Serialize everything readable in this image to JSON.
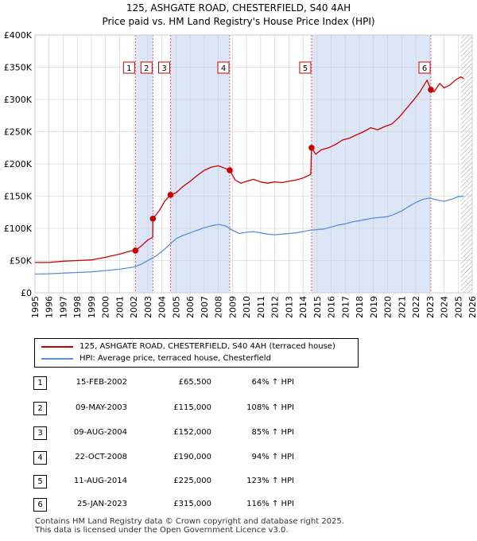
{
  "chart_data": {
    "type": "line",
    "title": "125, ASHGATE ROAD, CHESTERFIELD, S40 4AH",
    "subtitle": "Price paid vs. HM Land Registry's House Price Index (HPI)",
    "xlim": [
      1995,
      2026
    ],
    "ylim": [
      0,
      400000
    ],
    "x_ticks": [
      1995,
      1996,
      1997,
      1998,
      1999,
      2000,
      2001,
      2002,
      2003,
      2004,
      2005,
      2006,
      2007,
      2008,
      2009,
      2010,
      2011,
      2012,
      2013,
      2014,
      2015,
      2016,
      2017,
      2018,
      2019,
      2020,
      2021,
      2022,
      2023,
      2024,
      2025,
      2026
    ],
    "y_ticks": [
      0,
      50000,
      100000,
      150000,
      200000,
      250000,
      300000,
      350000,
      400000
    ],
    "y_tick_labels": [
      "£0",
      "£50K",
      "£100K",
      "£150K",
      "£200K",
      "£250K",
      "£300K",
      "£350K",
      "£400K"
    ],
    "colors": {
      "property": "#cc0000",
      "hpi": "#5b8fd6",
      "shade": "#dde6f7",
      "vline": "#dd6666",
      "grid": "#cccccc"
    },
    "series": [
      {
        "name": "125, ASHGATE ROAD, CHESTERFIELD, S40 4AH (terraced house)",
        "color": "#cc0000",
        "points": [
          [
            1995.0,
            47000
          ],
          [
            1996.0,
            47000
          ],
          [
            1997.0,
            49000
          ],
          [
            1998.0,
            50000
          ],
          [
            1999.0,
            51000
          ],
          [
            2000.0,
            55000
          ],
          [
            2001.0,
            60000
          ],
          [
            2001.8,
            65000
          ],
          [
            2002.12,
            65500
          ],
          [
            2002.5,
            72000
          ],
          [
            2003.0,
            82000
          ],
          [
            2003.35,
            86000
          ],
          [
            2003.36,
            115000
          ],
          [
            2003.8,
            127000
          ],
          [
            2004.2,
            142000
          ],
          [
            2004.6,
            152000
          ],
          [
            2004.61,
            152000
          ],
          [
            2005.0,
            155000
          ],
          [
            2005.5,
            165000
          ],
          [
            2006.0,
            173000
          ],
          [
            2006.5,
            182000
          ],
          [
            2007.0,
            190000
          ],
          [
            2007.5,
            195000
          ],
          [
            2008.0,
            197000
          ],
          [
            2008.5,
            193000
          ],
          [
            2008.81,
            190000
          ],
          [
            2009.2,
            175000
          ],
          [
            2009.6,
            170000
          ],
          [
            2010.0,
            173000
          ],
          [
            2010.5,
            176000
          ],
          [
            2011.0,
            172000
          ],
          [
            2011.5,
            170000
          ],
          [
            2012.0,
            172000
          ],
          [
            2012.5,
            171000
          ],
          [
            2013.0,
            173000
          ],
          [
            2013.5,
            175000
          ],
          [
            2014.0,
            178000
          ],
          [
            2014.55,
            184000
          ],
          [
            2014.61,
            225000
          ],
          [
            2014.9,
            215000
          ],
          [
            2015.3,
            222000
          ],
          [
            2015.8,
            225000
          ],
          [
            2016.3,
            230000
          ],
          [
            2016.8,
            237000
          ],
          [
            2017.3,
            240000
          ],
          [
            2017.8,
            245000
          ],
          [
            2018.3,
            250000
          ],
          [
            2018.8,
            256000
          ],
          [
            2019.3,
            253000
          ],
          [
            2019.8,
            258000
          ],
          [
            2020.3,
            262000
          ],
          [
            2020.8,
            272000
          ],
          [
            2021.3,
            285000
          ],
          [
            2021.8,
            298000
          ],
          [
            2022.3,
            312000
          ],
          [
            2022.8,
            330000
          ],
          [
            2023.07,
            315000
          ],
          [
            2023.3,
            312000
          ],
          [
            2023.7,
            325000
          ],
          [
            2024.0,
            318000
          ],
          [
            2024.4,
            322000
          ],
          [
            2024.8,
            330000
          ],
          [
            2025.2,
            335000
          ],
          [
            2025.4,
            332000
          ]
        ]
      },
      {
        "name": "HPI: Average price, terraced house, Chesterfield",
        "color": "#5b8fd6",
        "points": [
          [
            1995.0,
            29000
          ],
          [
            1996.0,
            29500
          ],
          [
            1997.0,
            30500
          ],
          [
            1998.0,
            31500
          ],
          [
            1999.0,
            32500
          ],
          [
            2000.0,
            34500
          ],
          [
            2001.0,
            36500
          ],
          [
            2002.0,
            40000
          ],
          [
            2002.5,
            44000
          ],
          [
            2003.0,
            50000
          ],
          [
            2003.5,
            56000
          ],
          [
            2004.0,
            64000
          ],
          [
            2004.5,
            74000
          ],
          [
            2005.0,
            84000
          ],
          [
            2005.5,
            89000
          ],
          [
            2006.0,
            93000
          ],
          [
            2006.5,
            97000
          ],
          [
            2007.0,
            101000
          ],
          [
            2007.5,
            104000
          ],
          [
            2008.0,
            106000
          ],
          [
            2008.5,
            104000
          ],
          [
            2009.0,
            97000
          ],
          [
            2009.5,
            92000
          ],
          [
            2010.0,
            94000
          ],
          [
            2010.5,
            95000
          ],
          [
            2011.0,
            93000
          ],
          [
            2011.5,
            91000
          ],
          [
            2012.0,
            90000
          ],
          [
            2012.5,
            91000
          ],
          [
            2013.0,
            92000
          ],
          [
            2013.5,
            93000
          ],
          [
            2014.0,
            95000
          ],
          [
            2014.5,
            97000
          ],
          [
            2015.0,
            98000
          ],
          [
            2015.5,
            99000
          ],
          [
            2016.0,
            102000
          ],
          [
            2016.5,
            105000
          ],
          [
            2017.0,
            107000
          ],
          [
            2017.5,
            110000
          ],
          [
            2018.0,
            112000
          ],
          [
            2018.5,
            114000
          ],
          [
            2019.0,
            116000
          ],
          [
            2019.5,
            117000
          ],
          [
            2020.0,
            118000
          ],
          [
            2020.5,
            122000
          ],
          [
            2021.0,
            127000
          ],
          [
            2021.5,
            134000
          ],
          [
            2022.0,
            140000
          ],
          [
            2022.5,
            145000
          ],
          [
            2023.0,
            147000
          ],
          [
            2023.5,
            144000
          ],
          [
            2024.0,
            142000
          ],
          [
            2024.5,
            145000
          ],
          [
            2025.0,
            149000
          ],
          [
            2025.4,
            150000
          ]
        ]
      }
    ],
    "sales": [
      {
        "num": "1",
        "x": 2002.12,
        "price": 65500,
        "date": "15-FEB-2002",
        "price_label": "£65,500",
        "hpi": "64% ↑ HPI"
      },
      {
        "num": "2",
        "x": 2003.36,
        "price": 115000,
        "date": "09-MAY-2003",
        "price_label": "£115,000",
        "hpi": "108% ↑ HPI"
      },
      {
        "num": "3",
        "x": 2004.61,
        "price": 152000,
        "date": "09-AUG-2004",
        "price_label": "£152,000",
        "hpi": "85% ↑ HPI"
      },
      {
        "num": "4",
        "x": 2008.81,
        "price": 190000,
        "date": "22-OCT-2008",
        "price_label": "£190,000",
        "hpi": "94% ↑ HPI"
      },
      {
        "num": "5",
        "x": 2014.61,
        "price": 225000,
        "date": "11-AUG-2014",
        "price_label": "£225,000",
        "hpi": "123% ↑ HPI"
      },
      {
        "num": "6",
        "x": 2023.07,
        "price": 315000,
        "date": "25-JAN-2023",
        "price_label": "£315,000",
        "hpi": "116% ↑ HPI"
      }
    ],
    "shaded_ranges": [
      [
        2002.12,
        2003.36
      ],
      [
        2004.61,
        2008.81
      ],
      [
        2014.61,
        2023.07
      ]
    ],
    "future_hatch_from": 2025.2
  },
  "legend": {
    "property_label": "125, ASHGATE ROAD, CHESTERFIELD, S40 4AH (terraced house)",
    "hpi_label": "HPI: Average price, terraced house, Chesterfield"
  },
  "footer": "Contains HM Land Registry data © Crown copyright and database right 2025.\nThis data is licensed under the Open Government Licence v3.0."
}
